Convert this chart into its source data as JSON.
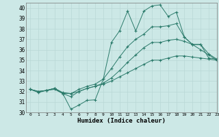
{
  "xlabel": "Humidex (Indice chaleur)",
  "bg_color": "#cce8e6",
  "grid_color": "#b8d8d6",
  "line_color": "#2a7a6a",
  "ylim": [
    30,
    40.5
  ],
  "xlim": [
    -0.5,
    23
  ],
  "yticks": [
    30,
    31,
    32,
    33,
    34,
    35,
    36,
    37,
    38,
    39,
    40
  ],
  "xticks": [
    0,
    1,
    2,
    3,
    4,
    5,
    6,
    7,
    8,
    9,
    10,
    11,
    12,
    13,
    14,
    15,
    16,
    17,
    18,
    19,
    20,
    21,
    22,
    23
  ],
  "series": [
    [
      32.2,
      31.9,
      32.1,
      32.2,
      31.8,
      30.3,
      30.7,
      31.15,
      31.2,
      33.2,
      36.7,
      37.8,
      39.7,
      37.8,
      39.7,
      40.2,
      40.3,
      39.2,
      39.6,
      37.2,
      36.5,
      36.5,
      35.2,
      35.1
    ],
    [
      32.2,
      32.0,
      32.1,
      32.3,
      31.8,
      31.8,
      32.2,
      32.5,
      32.7,
      33.2,
      34.2,
      35.3,
      36.3,
      37.0,
      37.5,
      38.2,
      38.2,
      38.3,
      38.5,
      37.2,
      36.5,
      36.5,
      35.6,
      35.1
    ],
    [
      32.2,
      32.0,
      32.1,
      32.3,
      31.8,
      31.5,
      32.0,
      32.3,
      32.5,
      32.8,
      33.3,
      34.0,
      34.8,
      35.5,
      36.2,
      36.7,
      36.7,
      36.9,
      37.0,
      36.8,
      36.5,
      36.0,
      35.5,
      35.0
    ],
    [
      32.2,
      32.0,
      32.1,
      32.3,
      31.9,
      31.8,
      32.0,
      32.3,
      32.5,
      32.7,
      33.0,
      33.4,
      33.8,
      34.2,
      34.6,
      35.0,
      35.0,
      35.2,
      35.4,
      35.4,
      35.3,
      35.2,
      35.1,
      35.0
    ]
  ]
}
